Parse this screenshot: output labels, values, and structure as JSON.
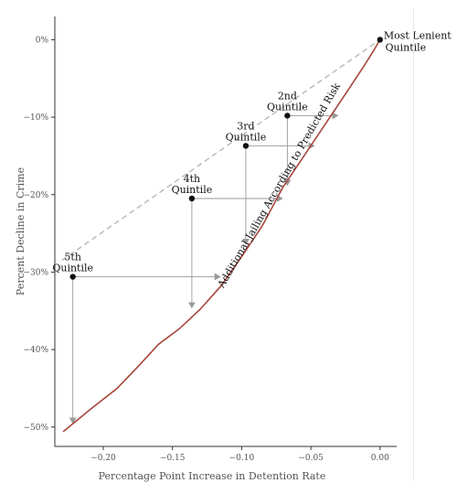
{
  "chart_data": {
    "type": "line",
    "xlabel": "Percentage Point Increase in Detention Rate",
    "ylabel": "Percent Decline in Crime",
    "xlim": [
      -0.235,
      0.012
    ],
    "ylim": [
      -52.5,
      3
    ],
    "x_ticks": [
      -0.2,
      -0.15,
      -0.1,
      -0.05,
      0.0
    ],
    "x_tick_labels": [
      "−0.20",
      "−0.15",
      "−0.10",
      "−0.05",
      "0.00"
    ],
    "y_ticks": [
      0,
      -10,
      -20,
      -30,
      -40,
      -50
    ],
    "y_tick_labels": [
      "0%",
      "−10%",
      "−20%",
      "−30%",
      "−40%",
      "−50%"
    ],
    "grid": false,
    "curve_label": "Additional Jailing According to Predicted Risk",
    "curve_color": "#a8453a",
    "dashed_color": "#bbbbbb",
    "arrow_color": "#9a9a9a",
    "curve": {
      "x": [
        -0.229,
        -0.21,
        -0.19,
        -0.175,
        -0.16,
        -0.145,
        -0.13,
        -0.115,
        -0.1,
        -0.085,
        -0.07,
        -0.055,
        -0.04,
        -0.025,
        -0.012,
        -0.005,
        0.0
      ],
      "y": [
        -50.6,
        -47.8,
        -45.0,
        -42.2,
        -39.3,
        -37.3,
        -34.8,
        -31.8,
        -28.0,
        -24.0,
        -19.0,
        -15.0,
        -11.0,
        -7.0,
        -3.5,
        -1.5,
        0.0
      ]
    },
    "quintiles": [
      {
        "label_line1": "Most Lenient",
        "label_line2": "Quintile",
        "x": 0.0,
        "y": 0.0
      },
      {
        "label_line1": "2nd",
        "label_line2": "Quintile",
        "x": -0.067,
        "y": -9.8,
        "arrow_x_end": -0.03,
        "arrow_y_end": -18.9
      },
      {
        "label_line1": "3rd",
        "label_line2": "Quintile",
        "x": -0.097,
        "y": -13.7,
        "arrow_x_end": -0.047,
        "arrow_y_end": -26.5
      },
      {
        "label_line1": "4th",
        "label_line2": "Quintile",
        "x": -0.136,
        "y": -20.5,
        "arrow_x_end": -0.07,
        "arrow_y_end": -34.7
      },
      {
        "label_line1": "5th",
        "label_line2": "Quintile",
        "x": -0.222,
        "y": -30.6,
        "arrow_x_end": -0.115,
        "arrow_y_end": -49.6
      }
    ]
  }
}
